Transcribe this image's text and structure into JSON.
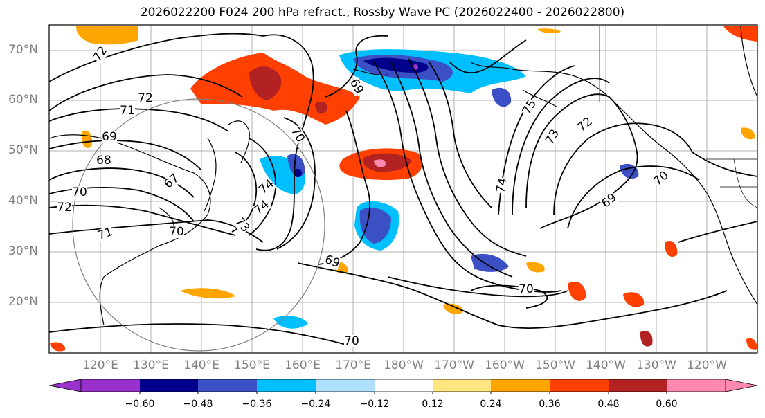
{
  "title": "2026022200 F024 200 hPa refract., Rossby Wave PC (2026022400 - 2026022800)",
  "lat_labels": [
    "70°N",
    "60°N",
    "50°N",
    "40°N",
    "30°N",
    "20°N"
  ],
  "lon_labels": [
    "120°E",
    "130°E",
    "140°E",
    "150°E",
    "160°E",
    "170°E",
    "180°W",
    "170°W",
    "160°W",
    "150°W",
    "140°W",
    "130°W",
    "120°W"
  ],
  "contour_labels": [
    "72",
    "72",
    "71",
    "69",
    "68",
    "67",
    "70",
    "72",
    "71",
    "70",
    "74",
    "74",
    "73",
    "69",
    "69",
    "70",
    "75",
    "73",
    "72",
    "74",
    "69",
    "70",
    "70",
    "70"
  ],
  "colorbar": {
    "ticks": [
      "−0.60",
      "−0.48",
      "−0.36",
      "−0.24",
      "−0.12",
      "0.12",
      "0.24",
      "0.36",
      "0.48",
      "0.60"
    ],
    "colors": [
      "#9932cc",
      "#00008b",
      "#3b50c4",
      "#00bfff",
      "#b0e0ff",
      "#ffffff",
      "#ffe680",
      "#ffa500",
      "#ff4000",
      "#b22222",
      "#ff88b0"
    ]
  }
}
